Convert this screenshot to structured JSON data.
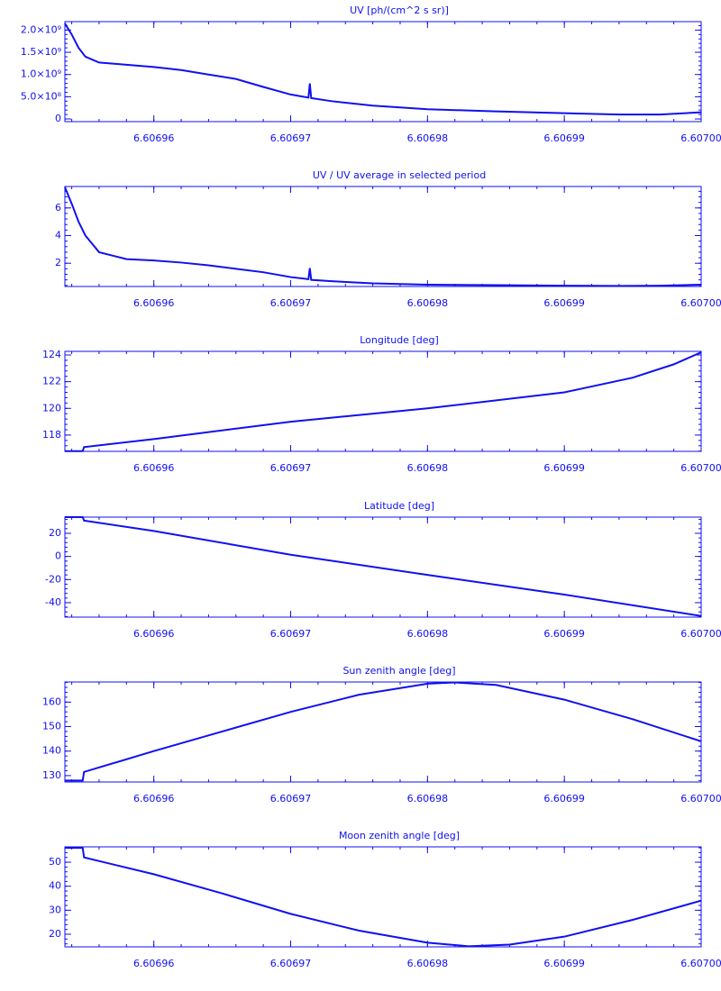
{
  "chart_data": [
    {
      "type": "line",
      "title": "UV [ph/(cm^2 s sr)]",
      "color": "#1010f0",
      "x": [
        6.6069535,
        6.606954,
        6.6069545,
        6.606955,
        6.606956,
        6.606958,
        6.60696,
        6.606962,
        6.606964,
        6.606966,
        6.606968,
        6.60697,
        6.6069713,
        6.6069714,
        6.6069715,
        6.606973,
        6.606976,
        6.60698,
        6.606985,
        6.60699,
        6.606994,
        6.606997,
        6.607
      ],
      "values": [
        2150000000,
        1900000000,
        1600000000,
        1400000000,
        1270000000,
        1220000000,
        1170000000,
        1100000000,
        1000000000,
        900000000,
        720000000,
        550000000,
        480000000,
        800000000,
        470000000,
        400000000,
        300000000,
        220000000,
        170000000,
        130000000,
        100000000,
        100000000,
        150000000
      ],
      "xlim": [
        6.6069535,
        6.607
      ],
      "xticks": [
        6.60696,
        6.60697,
        6.60698,
        6.60699,
        {
          "value": 6.607,
          "label": "6.60700"
        }
      ],
      "ylim": [
        -60000000,
        2190000000
      ],
      "yticks": [
        0,
        {
          "value": 500000000,
          "label": "5.0×10⁸"
        },
        {
          "value": 1000000000,
          "label": "1.0×10⁹"
        },
        {
          "value": 1500000000,
          "label": "1.5×10⁹"
        },
        {
          "value": 2000000000,
          "label": "2.0×10⁹"
        }
      ]
    },
    {
      "type": "line",
      "title": "UV / UV average in selected period",
      "color": "#1010f0",
      "x": [
        6.6069535,
        6.606954,
        6.6069545,
        6.606955,
        6.606956,
        6.606958,
        6.60696,
        6.606962,
        6.606964,
        6.606966,
        6.606968,
        6.60697,
        6.6069713,
        6.6069714,
        6.6069715,
        6.606973,
        6.606976,
        6.60698,
        6.606985,
        6.60699,
        6.606994,
        6.606997,
        6.607
      ],
      "values": [
        7.5,
        6.3,
        5.0,
        4.0,
        2.8,
        2.3,
        2.2,
        2.05,
        1.85,
        1.6,
        1.35,
        1.0,
        0.85,
        1.65,
        0.8,
        0.7,
        0.55,
        0.45,
        0.42,
        0.38,
        0.36,
        0.38,
        0.45
      ],
      "xlim": [
        6.6069535,
        6.607
      ],
      "xticks": [
        6.60696,
        6.60697,
        6.60698,
        6.60699,
        {
          "value": 6.607,
          "label": "6.60700"
        }
      ],
      "ylim": [
        0.32,
        7.55
      ],
      "yticks": [
        2,
        4,
        6
      ]
    },
    {
      "type": "line",
      "title": "Longitude [deg]",
      "color": "#1010f0",
      "x": [
        6.6069535,
        6.6069548,
        6.6069549,
        6.60696,
        6.60697,
        6.60698,
        6.60699,
        6.606995,
        6.606998,
        6.607
      ],
      "values": [
        116.8,
        116.8,
        117.1,
        117.7,
        119.0,
        120.0,
        121.2,
        122.3,
        123.3,
        124.2
      ],
      "xlim": [
        6.6069535,
        6.607
      ],
      "xticks": [
        6.60696,
        6.60697,
        6.60698,
        6.60699,
        {
          "value": 6.607,
          "label": "6.60700"
        }
      ],
      "ylim": [
        116.78,
        124.27
      ],
      "yticks": [
        118,
        120,
        122,
        124
      ]
    },
    {
      "type": "line",
      "title": "Latitude [deg]",
      "color": "#1010f0",
      "x": [
        6.6069535,
        6.6069548,
        6.6069549,
        6.60696,
        6.60697,
        6.60698,
        6.60699,
        6.607
      ],
      "values": [
        34,
        34,
        31,
        22,
        1.5,
        -16,
        -33,
        -51.5
      ],
      "xlim": [
        6.6069535,
        6.607
      ],
      "xticks": [
        6.60696,
        6.60697,
        6.60698,
        6.60699,
        {
          "value": 6.607,
          "label": "6.60700"
        }
      ],
      "ylim": [
        -52.5,
        34
      ],
      "yticks": [
        -40,
        -20,
        0,
        20
      ]
    },
    {
      "type": "line",
      "title": "Sun zenith angle [deg]",
      "color": "#1010f0",
      "x": [
        6.6069535,
        6.6069548,
        6.6069549,
        6.60696,
        6.606965,
        6.60697,
        6.606975,
        6.60698,
        6.606982,
        6.606985,
        6.60699,
        6.606995,
        6.607
      ],
      "values": [
        128,
        128,
        131.5,
        140,
        148,
        156,
        163,
        167.5,
        168,
        167,
        161,
        153,
        144
      ],
      "xlim": [
        6.6069535,
        6.607
      ],
      "xticks": [
        6.60696,
        6.60697,
        6.60698,
        6.60699,
        {
          "value": 6.607,
          "label": "6.60700"
        }
      ],
      "ylim": [
        127.4,
        168.2
      ],
      "yticks": [
        130,
        140,
        150,
        160
      ]
    },
    {
      "type": "line",
      "title": "Moon zenith angle [deg]",
      "color": "#1010f0",
      "x": [
        6.6069535,
        6.6069548,
        6.6069549,
        6.60696,
        6.606965,
        6.60697,
        6.606975,
        6.60698,
        6.606983,
        6.606986,
        6.60699,
        6.606995,
        6.607
      ],
      "values": [
        56,
        56,
        52,
        45,
        37,
        28.5,
        21.5,
        16.5,
        15,
        15.7,
        19,
        26,
        34
      ],
      "xlim": [
        6.6069535,
        6.607
      ],
      "xticks": [
        6.60696,
        6.60697,
        6.60698,
        6.60699,
        {
          "value": 6.607,
          "label": "6.60700"
        }
      ],
      "ylim": [
        14.75,
        56.4
      ],
      "yticks": [
        20,
        30,
        40,
        50
      ]
    }
  ]
}
